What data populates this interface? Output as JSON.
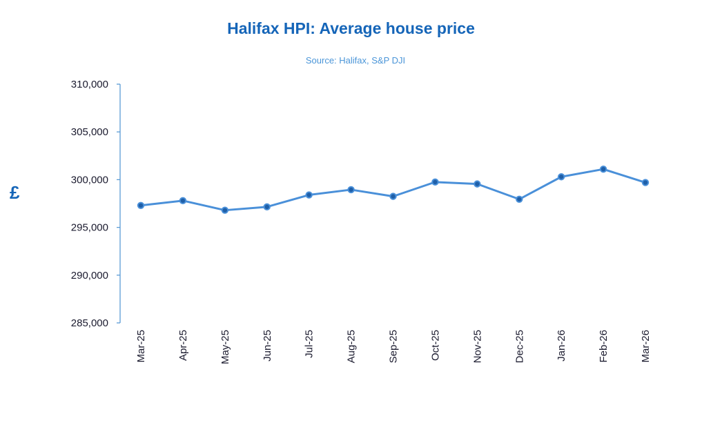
{
  "chart_data": {
    "type": "line",
    "title": "Halifax HPI: Average house price",
    "subtitle": "Source: Halifax,  S&P DJI",
    "ylabel": "£",
    "xlabel": "",
    "categories": [
      "Mar-25",
      "Apr-25",
      "May-25",
      "Jun-25",
      "Jul-25",
      "Aug-25",
      "Sep-25",
      "Oct-25",
      "Nov-25",
      "Dec-25",
      "Jan-26",
      "Feb-26",
      "Mar-26"
    ],
    "series": [
      {
        "values": [
          297300,
          297800,
          296800,
          297150,
          298400,
          298950,
          298250,
          299750,
          299550,
          297950,
          300300,
          301100,
          299700
        ],
        "color": "#4a90d9"
      }
    ],
    "ylim": [
      285000,
      310000
    ],
    "yticks": [
      285000,
      290000,
      295000,
      300000,
      305000,
      310000
    ],
    "ytick_labels": [
      "285,000",
      "290,000",
      "295,000",
      "300,000",
      "305,000",
      "310,000"
    ],
    "grid": false,
    "legend": "none",
    "colors": {
      "title": "#1565b8",
      "subtitle": "#4a95d8",
      "axis": "#5b9bd5",
      "line": "#4a90d9",
      "marker": "#1f5fa8"
    }
  }
}
